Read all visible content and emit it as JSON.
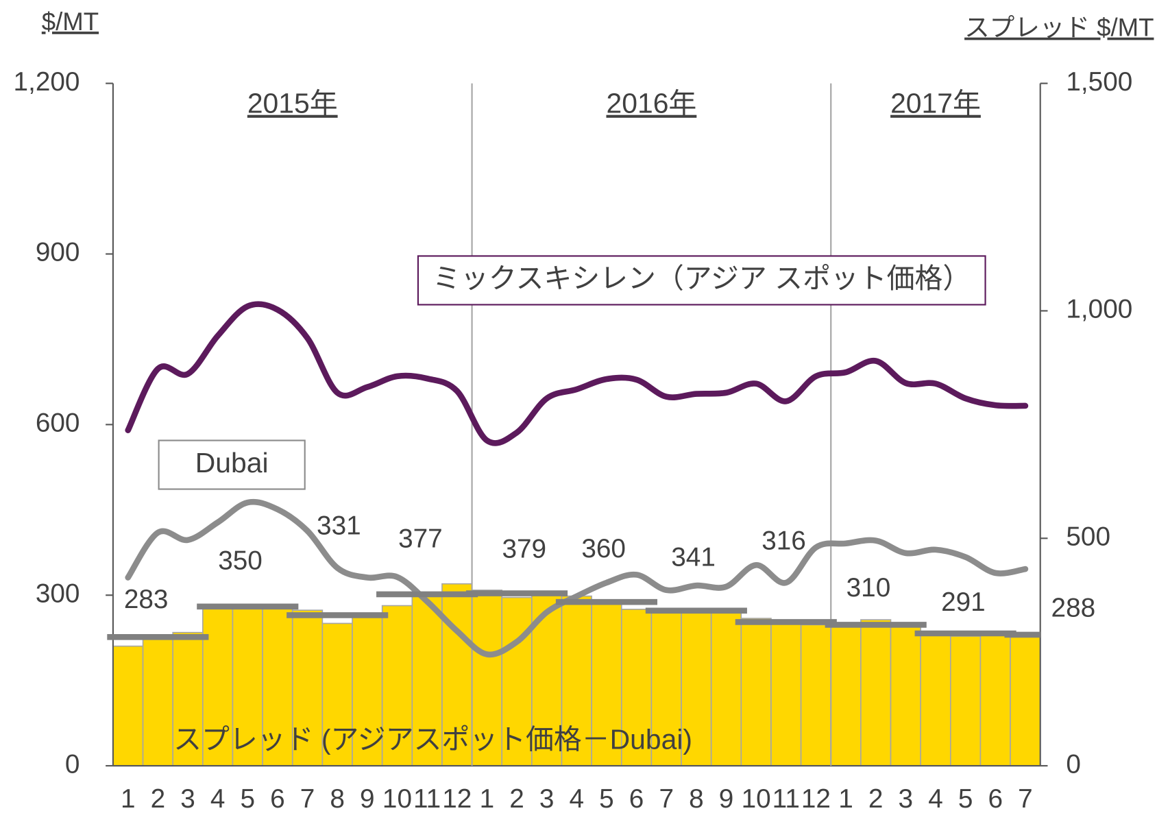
{
  "chart_data": {
    "type": "bar",
    "y_label": "$/MT",
    "y2_label": "スプレッド $/MT",
    "years": [
      "2015年",
      "2016年",
      "2017年"
    ],
    "categories": [
      "1",
      "2",
      "3",
      "4",
      "5",
      "6",
      "7",
      "8",
      "9",
      "10",
      "11",
      "12",
      "1",
      "2",
      "3",
      "4",
      "5",
      "6",
      "7",
      "8",
      "9",
      "10",
      "11",
      "12",
      "1",
      "2",
      "3",
      "4",
      "5",
      "6",
      "7"
    ],
    "ylim": [
      0,
      1200
    ],
    "yticks": [
      0,
      300,
      600,
      900,
      {
        "value": 1200,
        "label": "1,200"
      }
    ],
    "y2lim": [
      0,
      1500
    ],
    "y2ticks": [
      0,
      500,
      {
        "value": 1000,
        "label": "1,000"
      },
      {
        "value": 1500,
        "label": "1,500"
      }
    ],
    "series": [
      {
        "name": "スプレッド (アジアスポット価格－Dubai)",
        "type": "bar",
        "axis": "y2",
        "color": "#ffd700",
        "values": [
          263,
          279,
          293,
          350,
          350,
          353,
          342,
          313,
          329,
          352,
          381,
          400,
          386,
          370,
          384,
          373,
          358,
          344,
          336,
          341,
          339,
          324,
          316,
          310,
          310,
          321,
          308,
          295,
          285,
          293,
          284
        ]
      },
      {
        "name": "ミックスキシレン（アジア スポット価格）",
        "type": "line",
        "color": "#5c1a5c",
        "values": [
          590,
          698,
          689,
          756,
          808,
          802,
          752,
          656,
          666,
          685,
          681,
          659,
          572,
          586,
          646,
          662,
          680,
          679,
          649,
          654,
          656,
          672,
          641,
          685,
          692,
          712,
          673,
          672,
          646,
          634,
          633
        ]
      },
      {
        "name": "Dubai",
        "type": "line",
        "color": "#8c8c8c",
        "values": [
          331,
          410,
          397,
          428,
          463,
          451,
          413,
          348,
          331,
          332,
          289,
          237,
          196,
          218,
          270,
          298,
          322,
          336,
          309,
          317,
          315,
          353,
          322,
          384,
          391,
          396,
          374,
          380,
          367,
          339,
          346
        ]
      }
    ],
    "quarterly_average": {
      "axis": "y2",
      "color": "#808080",
      "values": [
        283,
        350,
        331,
        377,
        379,
        360,
        341,
        316,
        310,
        291,
        288
      ]
    }
  }
}
